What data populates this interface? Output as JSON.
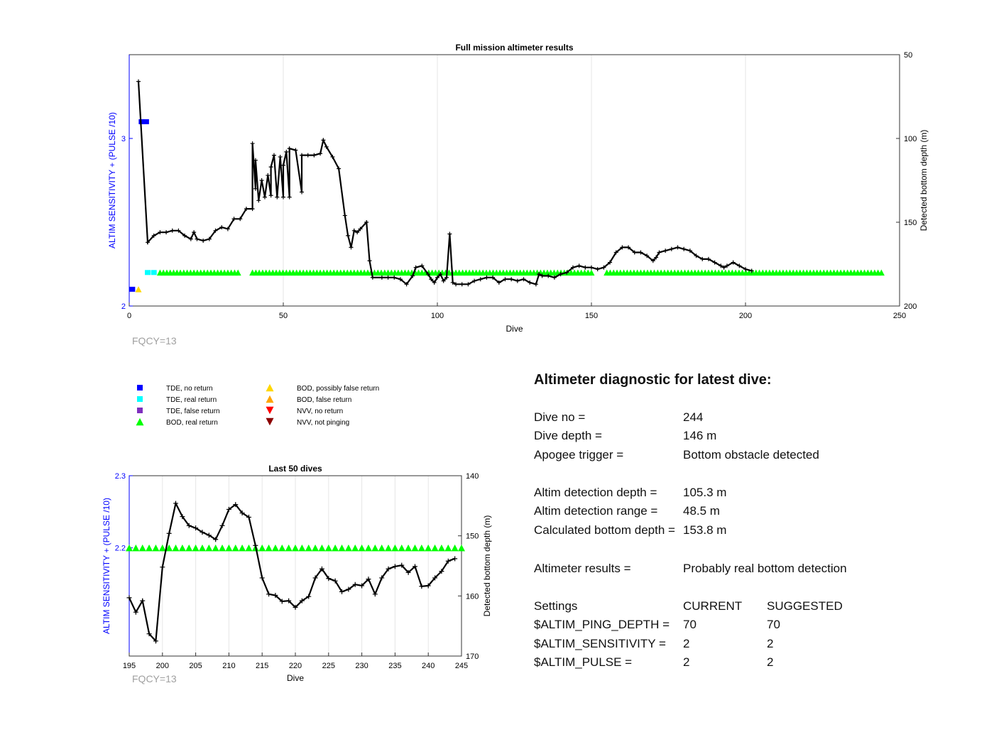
{
  "colors": {
    "left_axis": "#0000ff",
    "tde_no_return": "#0000ff",
    "tde_real_return": "#00ffff",
    "tde_false_return": "#7e2fbe",
    "bod_real_return": "#00ff00",
    "bod_possibly_false": "#ffd700",
    "bod_false_return": "#ffa500",
    "nvv_no_return": "#ff0000",
    "nvv_not_pinging": "#8b0000",
    "depth_line": "#000000",
    "fqcy_text": "#a0a0a0"
  },
  "chart_data": [
    {
      "type": "line",
      "title": "Full mission altimeter results",
      "xlabel": "Dive",
      "ylabel_left": "ALTIM SENSITIVITY + (PULSE /10)",
      "ylabel_right": "Detected bottom depth (m)",
      "xlim": [
        0,
        250
      ],
      "ylim_left": [
        2,
        3.5
      ],
      "ylim_right": [
        50,
        200
      ],
      "right_axis_reversed": true,
      "xticks": [
        "0",
        "50",
        "100",
        "150",
        "200",
        "250"
      ],
      "yticks_left": [
        "2",
        "3"
      ],
      "yticks_right": [
        "50",
        "100",
        "150",
        "200"
      ],
      "grid": "x",
      "annotation": "FQCY=13",
      "series": [
        {
          "name": "Detected bottom depth",
          "axis": "right",
          "points": [
            [
              3,
              66
            ],
            [
              6,
              162
            ],
            [
              8,
              158
            ],
            [
              10,
              156
            ],
            [
              12,
              156
            ],
            [
              14,
              155
            ],
            [
              16,
              155
            ],
            [
              18,
              158
            ],
            [
              20,
              160
            ],
            [
              21,
              156
            ],
            [
              22,
              160
            ],
            [
              24,
              161
            ],
            [
              26,
              160
            ],
            [
              28,
              155
            ],
            [
              30,
              153
            ],
            [
              32,
              154
            ],
            [
              34,
              148
            ],
            [
              36,
              148
            ],
            [
              38,
              142
            ],
            [
              40,
              142
            ],
            [
              42,
              137
            ],
            [
              44,
              135
            ],
            [
              46,
              134
            ],
            [
              48,
              135
            ],
            [
              50,
              135
            ],
            [
              52,
              135
            ],
            [
              56,
              132
            ],
            [
              41,
              130
            ],
            [
              40,
              103
            ],
            [
              41,
              113
            ],
            [
              43,
              125
            ],
            [
              45,
              122
            ],
            [
              46,
              117
            ],
            [
              47,
              110
            ],
            [
              49,
              111
            ],
            [
              50,
              116
            ],
            [
              51,
              108
            ],
            [
              52,
              106
            ],
            [
              54,
              107
            ],
            [
              56,
              110
            ],
            [
              58,
              110
            ],
            [
              60,
              110
            ],
            [
              62,
              109
            ],
            [
              63,
              101
            ],
            [
              64,
              105
            ],
            [
              66,
              111
            ],
            [
              68,
              118
            ],
            [
              70,
              146
            ],
            [
              71,
              158
            ],
            [
              72,
              165
            ],
            [
              73,
              155
            ],
            [
              74,
              156
            ],
            [
              75,
              154
            ],
            [
              77,
              150
            ],
            [
              78,
              173
            ],
            [
              79,
              183
            ],
            [
              82,
              183
            ],
            [
              84,
              183
            ],
            [
              86,
              183
            ],
            [
              88,
              184
            ],
            [
              90,
              187
            ],
            [
              92,
              182
            ],
            [
              93,
              177
            ],
            [
              95,
              176
            ],
            [
              97,
              181
            ],
            [
              98,
              184
            ],
            [
              99,
              186
            ],
            [
              100,
              183
            ],
            [
              101,
              181
            ],
            [
              102,
              185
            ],
            [
              103,
              183
            ],
            [
              104,
              157
            ],
            [
              105,
              186
            ],
            [
              106,
              187
            ],
            [
              108,
              187
            ],
            [
              110,
              187
            ],
            [
              112,
              185
            ],
            [
              114,
              184
            ],
            [
              116,
              183
            ],
            [
              118,
              183
            ],
            [
              120,
              186
            ],
            [
              122,
              184
            ],
            [
              124,
              184
            ],
            [
              126,
              185
            ],
            [
              128,
              184
            ],
            [
              130,
              186
            ],
            [
              132,
              187
            ],
            [
              133,
              181
            ],
            [
              134,
              182
            ],
            [
              136,
              182
            ],
            [
              138,
              183
            ],
            [
              140,
              181
            ],
            [
              142,
              180
            ],
            [
              144,
              177
            ],
            [
              146,
              176
            ],
            [
              148,
              177
            ],
            [
              150,
              177
            ],
            [
              152,
              178
            ],
            [
              154,
              177
            ],
            [
              156,
              174
            ],
            [
              158,
              168
            ],
            [
              160,
              165
            ],
            [
              162,
              165
            ],
            [
              164,
              168
            ],
            [
              166,
              168
            ],
            [
              168,
              170
            ],
            [
              170,
              173
            ],
            [
              171,
              171
            ],
            [
              172,
              168
            ],
            [
              174,
              167
            ],
            [
              176,
              166
            ],
            [
              178,
              165
            ],
            [
              180,
              166
            ],
            [
              182,
              167
            ],
            [
              184,
              170
            ],
            [
              186,
              172
            ],
            [
              188,
              172
            ],
            [
              190,
              174
            ],
            [
              192,
              176
            ],
            [
              193,
              177
            ],
            [
              194,
              176
            ],
            [
              196,
              174
            ],
            [
              198,
              176
            ],
            [
              200,
              178
            ],
            [
              202,
              179
            ]
          ]
        }
      ]
    },
    {
      "type": "line",
      "title": "Last 50 dives",
      "xlabel": "Dive",
      "ylabel_left": "ALTIM SENSITIVITY + (PULSE /10)",
      "ylabel_right": "Detected bottom depth (m)",
      "xlim": [
        195,
        245
      ],
      "ylim_left": [
        2.05,
        2.3
      ],
      "ylim_right": [
        140,
        170
      ],
      "right_axis_reversed": true,
      "xticks": [
        "195",
        "200",
        "205",
        "210",
        "215",
        "220",
        "225",
        "230",
        "235",
        "240",
        "245"
      ],
      "yticks_left": [
        "2.2",
        "2.3"
      ],
      "yticks_right": [
        "140",
        "150",
        "160",
        "170"
      ],
      "grid": "x",
      "annotation": "FQCY=13",
      "series": [
        {
          "name": "Detected bottom depth",
          "axis": "right",
          "x": [
            195,
            196,
            197,
            198,
            199,
            200,
            201,
            202,
            203,
            204,
            205,
            206,
            207,
            208,
            209,
            210,
            211,
            212,
            213,
            214,
            215,
            216,
            217,
            218,
            219,
            220,
            221,
            222,
            223,
            224,
            225,
            226,
            227,
            228,
            229,
            230,
            231,
            232,
            233,
            234,
            235,
            236,
            237,
            238,
            239,
            240,
            241,
            242,
            243,
            244
          ],
          "y": [
            160.3,
            162.7,
            160.8,
            166.3,
            167.5,
            155.2,
            149.6,
            144.6,
            146.8,
            148.3,
            148.7,
            149.4,
            149.9,
            150.6,
            148.3,
            145.6,
            144.8,
            146.2,
            146.9,
            151.6,
            157.0,
            159.7,
            159.9,
            160.9,
            160.8,
            161.9,
            160.8,
            160.1,
            157.0,
            155.5,
            157.1,
            157.5,
            159.3,
            158.9,
            158.1,
            158.3,
            157.2,
            159.7,
            157.0,
            155.5,
            155.1,
            154.9,
            156.1,
            155.1,
            158.4,
            158.3,
            157.0,
            155.9,
            154.2,
            153.8
          ]
        }
      ]
    }
  ],
  "legend": {
    "items": [
      {
        "label": "TDE, no return",
        "marker": "square",
        "color": "#0000ff"
      },
      {
        "label": "TDE, real return",
        "marker": "square",
        "color": "#00ffff"
      },
      {
        "label": "TDE, false return",
        "marker": "square",
        "color": "#7e2fbe"
      },
      {
        "label": "BOD, real return",
        "marker": "triangle-up",
        "color": "#00ff00"
      },
      {
        "label": "BOD, possibly false return",
        "marker": "triangle-up",
        "color": "#ffd700"
      },
      {
        "label": "BOD, false return",
        "marker": "triangle-up",
        "color": "#ffa500"
      },
      {
        "label": "NVV, no return",
        "marker": "triangle-down",
        "color": "#ff0000"
      },
      {
        "label": "NVV, not pinging",
        "marker": "triangle-down",
        "color": "#8b0000"
      }
    ]
  },
  "diagnostic": {
    "heading": "Altimeter diagnostic for latest dive:",
    "dive_no_label": "Dive no =",
    "dive_no_value": "244",
    "dive_depth_label": "Dive depth =",
    "dive_depth_value": "146 m",
    "apogee_label": "Apogee trigger =",
    "apogee_value": "Bottom obstacle detected",
    "det_depth_label": "Altim detection depth =",
    "det_depth_value": "105.3 m",
    "det_range_label": "Altim detection range =",
    "det_range_value": "48.5 m",
    "calc_depth_label": "Calculated bottom depth =",
    "calc_depth_value": "153.8 m",
    "results_label": "Altimeter results =",
    "results_value": "Probably real bottom detection",
    "settings_label": "Settings",
    "current_label": "CURRENT",
    "suggested_label": "SUGGESTED",
    "ping_label": "$ALTIM_PING_DEPTH =",
    "ping_current": "70",
    "ping_suggested": "70",
    "sens_label": "$ALTIM_SENSITIVITY =",
    "sens_current": "2",
    "sens_suggested": "2",
    "pulse_label": "$ALTIM_PULSE =",
    "pulse_current": "2",
    "pulse_suggested": "2"
  }
}
